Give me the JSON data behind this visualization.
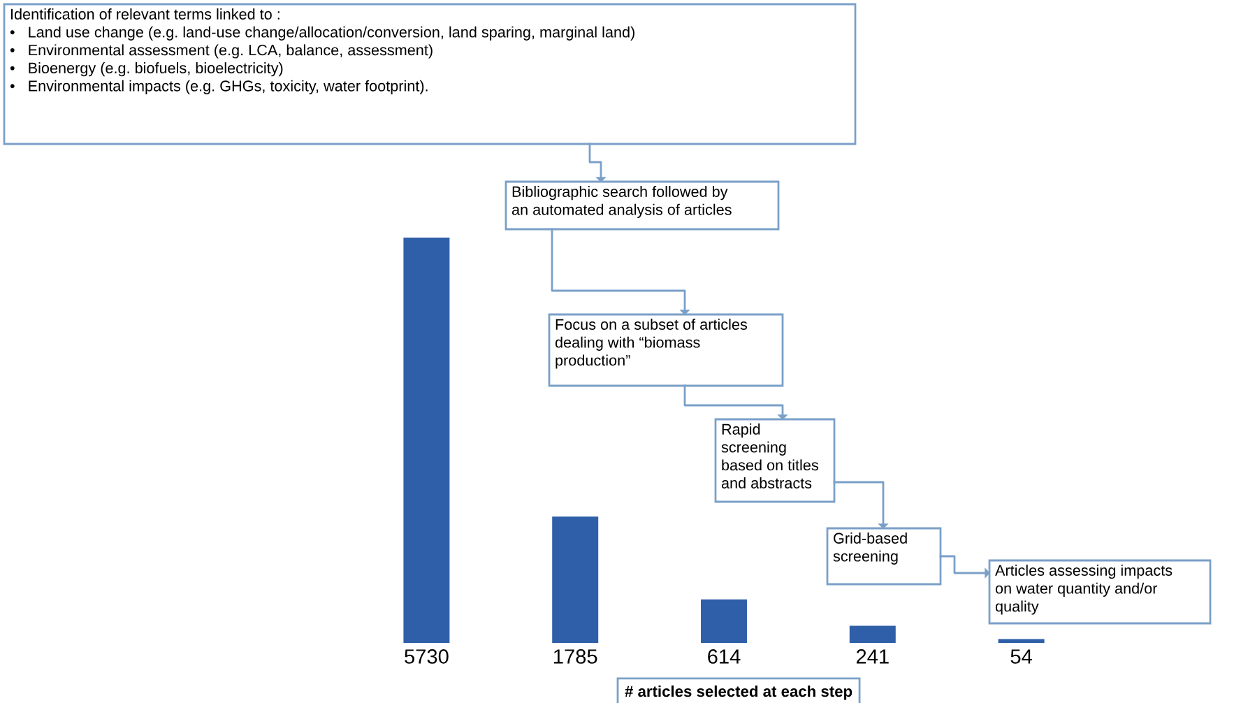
{
  "chart_data": {
    "type": "bar",
    "categories": [
      null,
      null,
      null,
      null,
      null
    ],
    "values": [
      5730,
      1785,
      614,
      241,
      54
    ],
    "color": "#2e5fa8",
    "data_labels": true,
    "grid": false,
    "legend": false,
    "xlabel": "# articles selected at each step",
    "annotations": [
      "Identification of relevant terms linked to :\n•   Land use change (e.g. land-use change/allocation/conversion, land sparing, marginal land)\n•   Environmental assessment (e.g. LCA, balance, assessment)\n•   Bioenergy (e.g. biofuels, bioelectricity)\n•   Environmental impacts (e.g. GHGs, toxicity, water footprint).",
      "Bibliographic search followed by\nan automated analysis of articles",
      "Focus on a subset of articles\ndealing with “biomass\nproduction”",
      "Rapid\nscreening\nbased on titles\nand abstracts",
      "Grid-based\nscreening",
      "Articles assessing impacts\non water quantity and/or\nquality"
    ]
  }
}
